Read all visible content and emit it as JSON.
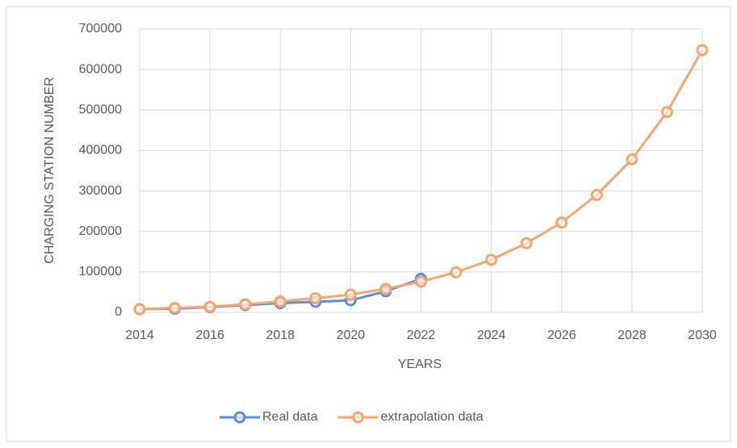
{
  "chart_data": {
    "type": "line",
    "x": [
      2014,
      2015,
      2016,
      2017,
      2018,
      2019,
      2020,
      2021,
      2022,
      2023,
      2024,
      2025,
      2026,
      2027,
      2028,
      2029,
      2030
    ],
    "series": [
      {
        "name": "Real data",
        "color": "#5b8fd6",
        "values": [
          8000,
          9000,
          13000,
          18000,
          23000,
          26000,
          30000,
          52000,
          83000,
          null,
          null,
          null,
          null,
          null,
          null,
          null,
          null
        ]
      },
      {
        "name": "extrapolation data",
        "color": "#f8a46c",
        "values": [
          8000,
          11000,
          14000,
          20000,
          27000,
          35000,
          44000,
          58000,
          76000,
          99000,
          130000,
          171000,
          222000,
          290000,
          378000,
          495000,
          648000
        ]
      }
    ],
    "xlabel": "YEARS",
    "ylabel": "CHARGING STATION NUMBER",
    "xlim": [
      2014,
      2030
    ],
    "xticks": [
      2014,
      2016,
      2018,
      2020,
      2022,
      2024,
      2026,
      2028,
      2030
    ],
    "ylim": [
      0,
      700000
    ],
    "yticks": [
      0,
      100000,
      200000,
      300000,
      400000,
      500000,
      600000,
      700000
    ],
    "grid": true,
    "legend": "bottom"
  }
}
